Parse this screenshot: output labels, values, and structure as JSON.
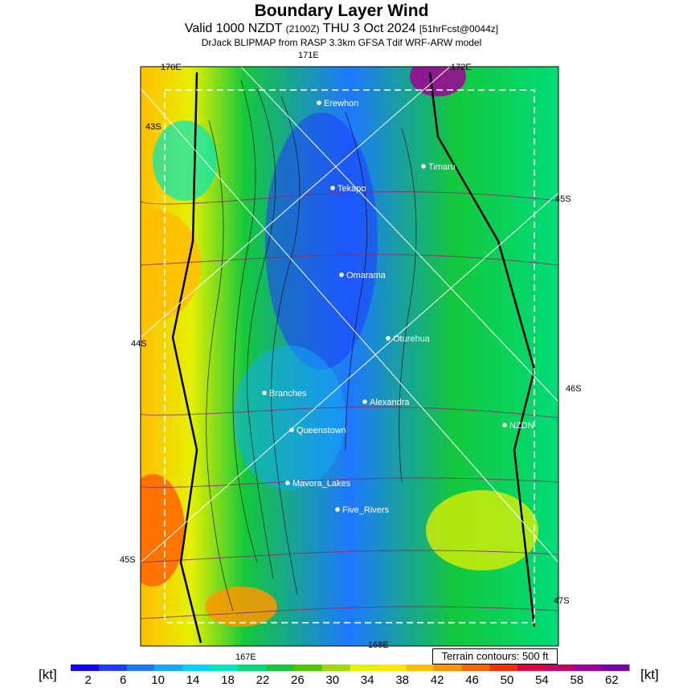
{
  "header": {
    "title": "Boundary Layer Wind",
    "valid_prefix": "Valid 1000 NZDT",
    "valid_small": "(2100Z)",
    "valid_date": "THU 3 Oct 2024",
    "forecast_tag": "[51hrFcst@0044z]",
    "model": "DrJack BLIPMAP from RASP 3.3km GFSA Tdif WRF-ARW model"
  },
  "edge_labels": {
    "top_lon": "171E",
    "lon_170": "170E",
    "lon_172": "172E",
    "lat_43": "43S",
    "lat_44": "44S",
    "lat_45_left": "45S",
    "lat_45_right": "45S",
    "lat_46": "46S",
    "lat_47": "47S",
    "lon_167": "167E",
    "lon_168": "168E"
  },
  "places": [
    {
      "name": "Erewhon"
    },
    {
      "name": "Timaru"
    },
    {
      "name": "Tekapo"
    },
    {
      "name": "Omarama"
    },
    {
      "name": "Oturehua"
    },
    {
      "name": "Branches"
    },
    {
      "name": "Alexandra"
    },
    {
      "name": "NZDN"
    },
    {
      "name": "Queenstown"
    },
    {
      "name": "Mavora_Lakes"
    },
    {
      "name": "Five_Rivers"
    }
  ],
  "terrain_note": "Terrain contours: 500 ft",
  "colorbar": {
    "unit_left": "[kt]",
    "unit_right": "[kt]",
    "ticks": [
      "2",
      "6",
      "10",
      "14",
      "18",
      "22",
      "26",
      "30",
      "34",
      "38",
      "42",
      "46",
      "50",
      "54",
      "58",
      "62"
    ],
    "colors": [
      "#1400ff",
      "#1e3cff",
      "#1e78ff",
      "#14aaff",
      "#00d2ff",
      "#00e6be",
      "#00dc78",
      "#14c83c",
      "#50c800",
      "#a0dc00",
      "#e6f000",
      "#ffe600",
      "#ffbe00",
      "#ff9600",
      "#ff6400",
      "#ff2d00",
      "#e6003c",
      "#c80064",
      "#a00096",
      "#7800aa"
    ]
  }
}
